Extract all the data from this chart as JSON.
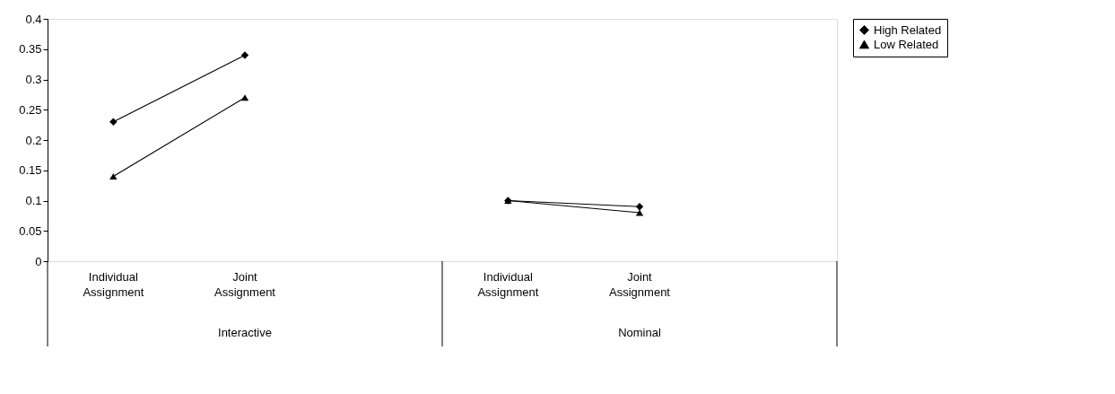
{
  "chart_data": {
    "type": "line",
    "categories": [
      "Individual Assignment",
      "Joint Assignment",
      null,
      "Individual Assignment",
      "Joint Assignment",
      null
    ],
    "annotations": [
      "Interactive",
      "Nominal"
    ],
    "series": [
      {
        "name": "High Related",
        "color": "#000000",
        "marker": "diamond",
        "values": [
          0.23,
          0.34,
          null,
          0.1,
          0.09,
          null
        ]
      },
      {
        "name": "Low Related",
        "color": "#000000",
        "marker": "triangle",
        "values": [
          0.14,
          0.27,
          null,
          0.1,
          0.08,
          null
        ]
      }
    ],
    "ylim": [
      0,
      0.4
    ],
    "yticks": [
      0,
      0.05,
      0.1,
      0.15,
      0.2,
      0.25,
      0.3,
      0.35,
      0.4
    ],
    "grid": false,
    "legend": "right",
    "line_style": "solid"
  }
}
